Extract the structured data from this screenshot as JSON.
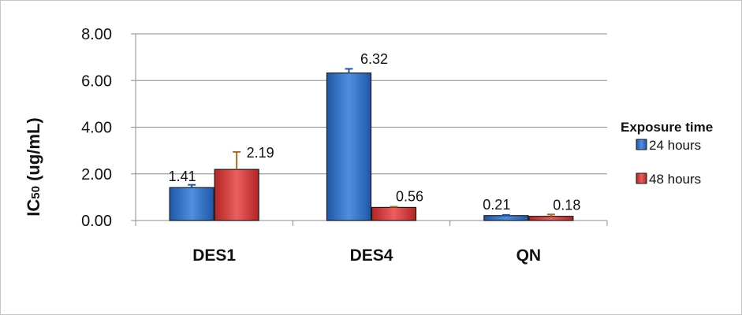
{
  "chart_data": {
    "type": "bar",
    "title": "",
    "ylabel": "IC50 (ug/mL)",
    "xlabel": "",
    "categories": [
      "DES1",
      "DES4",
      "QN"
    ],
    "ylim": [
      0,
      8
    ],
    "yticks": [
      0,
      2,
      4,
      6,
      8
    ],
    "ytick_labels": [
      "0.00",
      "2.00",
      "4.00",
      "6.00",
      "8.00"
    ],
    "grid": true,
    "legend": {
      "title": "Exposure time",
      "position": "right"
    },
    "series": [
      {
        "name": "24 hours",
        "color": "#2e70c9",
        "values": [
          1.41,
          6.32,
          0.21
        ],
        "errors": [
          0.12,
          0.18,
          0.03
        ],
        "labels": [
          "1.41",
          "6.32",
          "0.21"
        ]
      },
      {
        "name": "48 hours",
        "color": "#d93a3a",
        "values": [
          2.19,
          0.56,
          0.18
        ],
        "errors": [
          0.75,
          0.03,
          0.08
        ],
        "labels": [
          "2.19",
          "0.56",
          "0.18"
        ]
      }
    ]
  }
}
